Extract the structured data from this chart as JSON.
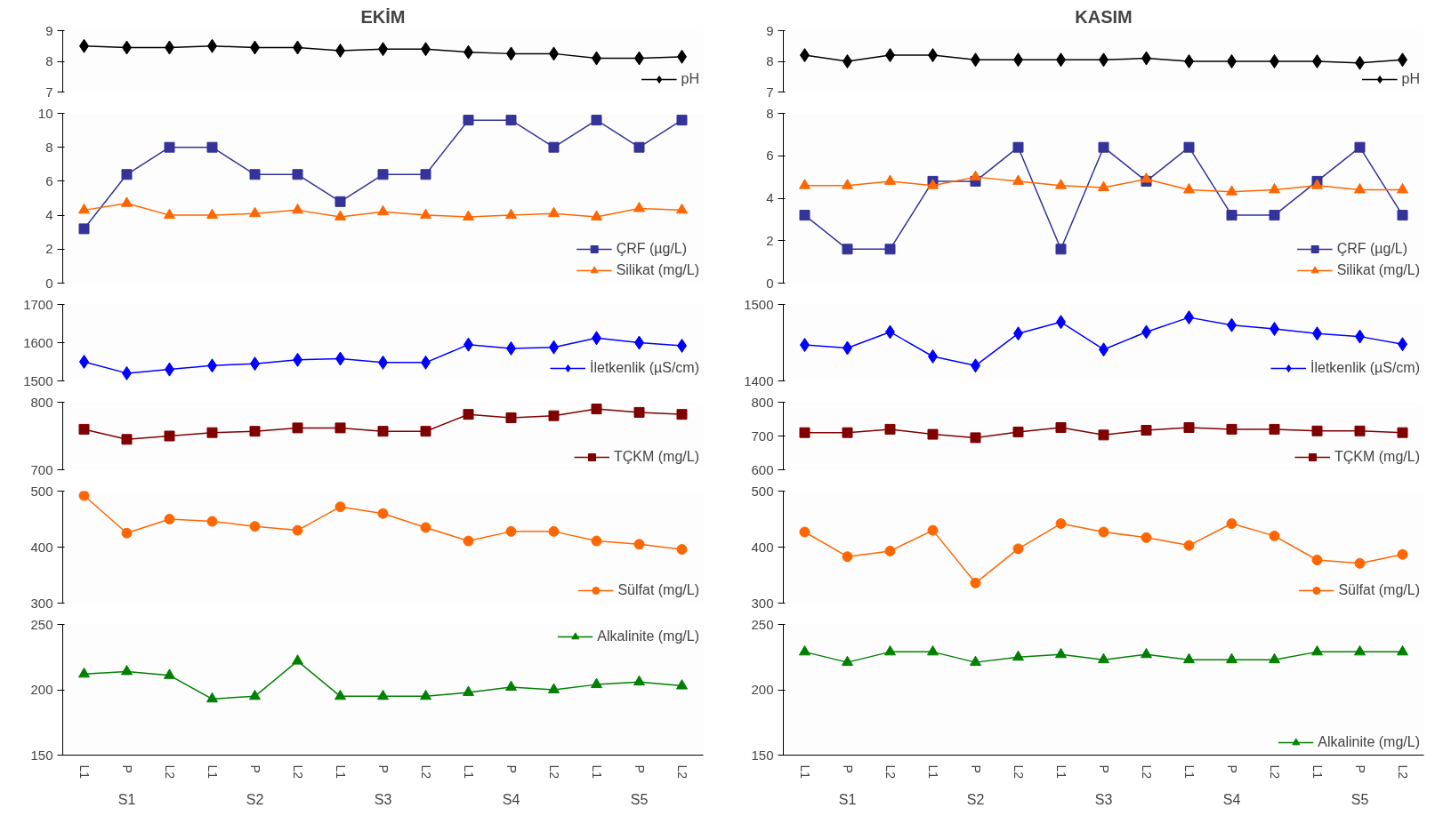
{
  "chart_data": [
    {
      "type": "line",
      "title": "EKİM",
      "categories": [
        null,
        null,
        null,
        null,
        null,
        null,
        null,
        null,
        null,
        null,
        null,
        null,
        null,
        null,
        null
      ],
      "series": [
        {
          "name": "pH",
          "color": "#000000",
          "marker": "diamond",
          "values": [
            8.5,
            8.45,
            8.45,
            8.5,
            8.45,
            8.45,
            8.35,
            8.4,
            8.4,
            8.3,
            8.25,
            8.25,
            8.1,
            8.1,
            8.15
          ]
        }
      ],
      "ylim": [
        7,
        9
      ],
      "yticks": [
        7,
        8,
        9
      ],
      "grid": false,
      "legend": "bottom right",
      "tick_labels": "y"
    },
    {
      "type": "line",
      "categories": [
        null,
        null,
        null,
        null,
        null,
        null,
        null,
        null,
        null,
        null,
        null,
        null,
        null,
        null,
        null
      ],
      "series": [
        {
          "name": "ÇRF (µg/L)",
          "color": "#333399",
          "marker": "square",
          "values": [
            3.2,
            6.4,
            8,
            8,
            6.4,
            6.4,
            4.8,
            6.4,
            6.4,
            9.6,
            9.6,
            8,
            9.6,
            8,
            9.6
          ]
        },
        {
          "name": "Silikat (mg/L)",
          "color": "#ff6600",
          "marker": "triangle",
          "values": [
            4.3,
            4.7,
            4.0,
            4.0,
            4.1,
            4.3,
            3.9,
            4.2,
            4.0,
            3.9,
            4.0,
            4.1,
            3.9,
            4.4,
            4.3
          ]
        }
      ],
      "ylim": [
        0,
        10
      ],
      "yticks": [
        0,
        2,
        4,
        6,
        8,
        10
      ],
      "grid": false,
      "legend": "bottom right",
      "tick_labels": "y"
    },
    {
      "type": "line",
      "categories": [
        null,
        null,
        null,
        null,
        null,
        null,
        null,
        null,
        null,
        null,
        null,
        null,
        null,
        null,
        null
      ],
      "series": [
        {
          "name": "İletkenlik (µS/cm)",
          "color": "#0000ff",
          "marker": "diamond",
          "values": [
            1550,
            1520,
            1530,
            1540,
            1545,
            1555,
            1558,
            1548,
            1548,
            1595,
            1585,
            1588,
            1612,
            1600,
            1592
          ]
        }
      ],
      "ylim": [
        1500,
        1700
      ],
      "yticks": [
        1500,
        1600,
        1700
      ],
      "grid": false,
      "legend": "bottom right",
      "tick_labels": "y"
    },
    {
      "type": "line",
      "categories": [
        null,
        null,
        null,
        null,
        null,
        null,
        null,
        null,
        null,
        null,
        null,
        null,
        null,
        null,
        null
      ],
      "series": [
        {
          "name": "TÇKM (mg/L)",
          "color": "#800000",
          "marker": "square",
          "values": [
            760,
            745,
            750,
            755,
            757,
            762,
            762,
            757,
            757,
            782,
            777,
            780,
            790,
            785,
            782
          ]
        }
      ],
      "ylim": [
        700,
        800
      ],
      "yticks": [
        700,
        800
      ],
      "grid": false,
      "legend": "bottom right",
      "tick_labels": "y"
    },
    {
      "type": "line",
      "categories": [
        null,
        null,
        null,
        null,
        null,
        null,
        null,
        null,
        null,
        null,
        null,
        null,
        null,
        null,
        null
      ],
      "series": [
        {
          "name": "Sülfat (mg/L)",
          "color": "#ff6600",
          "marker": "circle",
          "values": [
            492,
            425,
            450,
            446,
            437,
            430,
            472,
            460,
            435,
            411,
            428,
            428,
            411,
            405,
            396
          ]
        }
      ],
      "ylim": [
        300,
        500
      ],
      "yticks": [
        300,
        400,
        500
      ],
      "grid": false,
      "legend": "bottom right",
      "tick_labels": "y"
    },
    {
      "type": "line",
      "categories": [
        "L1",
        "P",
        "L2",
        "L1",
        "P",
        "L2",
        "L1",
        "P",
        "L2",
        "L1",
        "P",
        "L2",
        "L1",
        "P",
        "L2"
      ],
      "series": [
        {
          "name": "Alkalinite (mg/L)",
          "color": "#008000",
          "marker": "triangle",
          "values": [
            212,
            214,
            211,
            193,
            195,
            222,
            195,
            195,
            195,
            198,
            202,
            200,
            204,
            206,
            203
          ]
        }
      ],
      "ylim": [
        150,
        250
      ],
      "yticks": [
        150,
        200,
        250
      ],
      "grid": false,
      "legend": "top right",
      "annotations": [
        "S1",
        "S2",
        "S3",
        "S4",
        "S5"
      ]
    },
    {
      "type": "line",
      "title": "KASIM",
      "categories": [
        null,
        null,
        null,
        null,
        null,
        null,
        null,
        null,
        null,
        null,
        null,
        null,
        null,
        null,
        null
      ],
      "series": [
        {
          "name": "pH",
          "color": "#000000",
          "marker": "diamond",
          "values": [
            8.2,
            8.0,
            8.2,
            8.2,
            8.05,
            8.05,
            8.05,
            8.05,
            8.1,
            8.0,
            8.0,
            8.0,
            8.0,
            7.95,
            8.05
          ]
        }
      ],
      "ylim": [
        7,
        9
      ],
      "yticks": [
        7,
        8,
        9
      ],
      "grid": false,
      "legend": "bottom right",
      "tick_labels": "y"
    },
    {
      "type": "line",
      "categories": [
        null,
        null,
        null,
        null,
        null,
        null,
        null,
        null,
        null,
        null,
        null,
        null,
        null,
        null,
        null
      ],
      "series": [
        {
          "name": "ÇRF (µg/L)",
          "color": "#333399",
          "marker": "square",
          "values": [
            3.2,
            1.6,
            1.6,
            4.8,
            4.8,
            6.4,
            1.6,
            6.4,
            4.8,
            6.4,
            3.2,
            3.2,
            4.8,
            6.4,
            3.2
          ]
        },
        {
          "name": "Silikat (mg/L)",
          "color": "#ff6600",
          "marker": "triangle",
          "values": [
            4.6,
            4.6,
            4.8,
            4.6,
            5.0,
            4.8,
            4.6,
            4.5,
            4.9,
            4.4,
            4.3,
            4.4,
            4.6,
            4.4,
            4.4
          ]
        }
      ],
      "ylim": [
        0,
        8
      ],
      "yticks": [
        0,
        2,
        4,
        6,
        8
      ],
      "grid": false,
      "legend": "bottom right",
      "tick_labels": "y"
    },
    {
      "type": "line",
      "categories": [
        null,
        null,
        null,
        null,
        null,
        null,
        null,
        null,
        null,
        null,
        null,
        null,
        null,
        null,
        null
      ],
      "series": [
        {
          "name": "İletkenlik (µS/cm)",
          "color": "#0000ff",
          "marker": "diamond",
          "values": [
            1447,
            1443,
            1464,
            1432,
            1420,
            1462,
            1477,
            1441,
            1464,
            1483,
            1473,
            1468,
            1462,
            1458,
            1448
          ]
        }
      ],
      "ylim": [
        1400,
        1500
      ],
      "yticks": [
        1400,
        1500
      ],
      "grid": false,
      "legend": "bottom right",
      "tick_labels": "y"
    },
    {
      "type": "line",
      "categories": [
        null,
        null,
        null,
        null,
        null,
        null,
        null,
        null,
        null,
        null,
        null,
        null,
        null,
        null,
        null
      ],
      "series": [
        {
          "name": "TÇKM (mg/L)",
          "color": "#800000",
          "marker": "square",
          "values": [
            710,
            710,
            720,
            705,
            695,
            712,
            725,
            703,
            717,
            725,
            720,
            720,
            715,
            715,
            710
          ]
        }
      ],
      "ylim": [
        600,
        800
      ],
      "yticks": [
        600,
        700,
        800
      ],
      "grid": false,
      "legend": "bottom right",
      "tick_labels": "y"
    },
    {
      "type": "line",
      "categories": [
        null,
        null,
        null,
        null,
        null,
        null,
        null,
        null,
        null,
        null,
        null,
        null,
        null,
        null,
        null
      ],
      "series": [
        {
          "name": "Sülfat (mg/L)",
          "color": "#ff6600",
          "marker": "circle",
          "values": [
            427,
            383,
            393,
            430,
            336,
            397,
            442,
            427,
            417,
            403,
            442,
            420,
            377,
            371,
            387
          ]
        }
      ],
      "ylim": [
        300,
        500
      ],
      "yticks": [
        300,
        400,
        500
      ],
      "grid": false,
      "legend": "bottom right",
      "tick_labels": "y"
    },
    {
      "type": "line",
      "categories": [
        "L1",
        "P",
        "L2",
        "L1",
        "P",
        "L2",
        "L1",
        "P",
        "L2",
        "L1",
        "P",
        "L2",
        "L1",
        "P",
        "L2"
      ],
      "series": [
        {
          "name": "Alkalinite (mg/L)",
          "color": "#008000",
          "marker": "triangle",
          "values": [
            229,
            221,
            229,
            229,
            221,
            225,
            227,
            223,
            227,
            223,
            223,
            223,
            229,
            229,
            229
          ]
        }
      ],
      "ylim": [
        150,
        250
      ],
      "yticks": [
        150,
        200,
        250
      ],
      "grid": false,
      "legend": "bottom right",
      "annotations": [
        "S1",
        "S2",
        "S3",
        "S4",
        "S5"
      ]
    }
  ]
}
